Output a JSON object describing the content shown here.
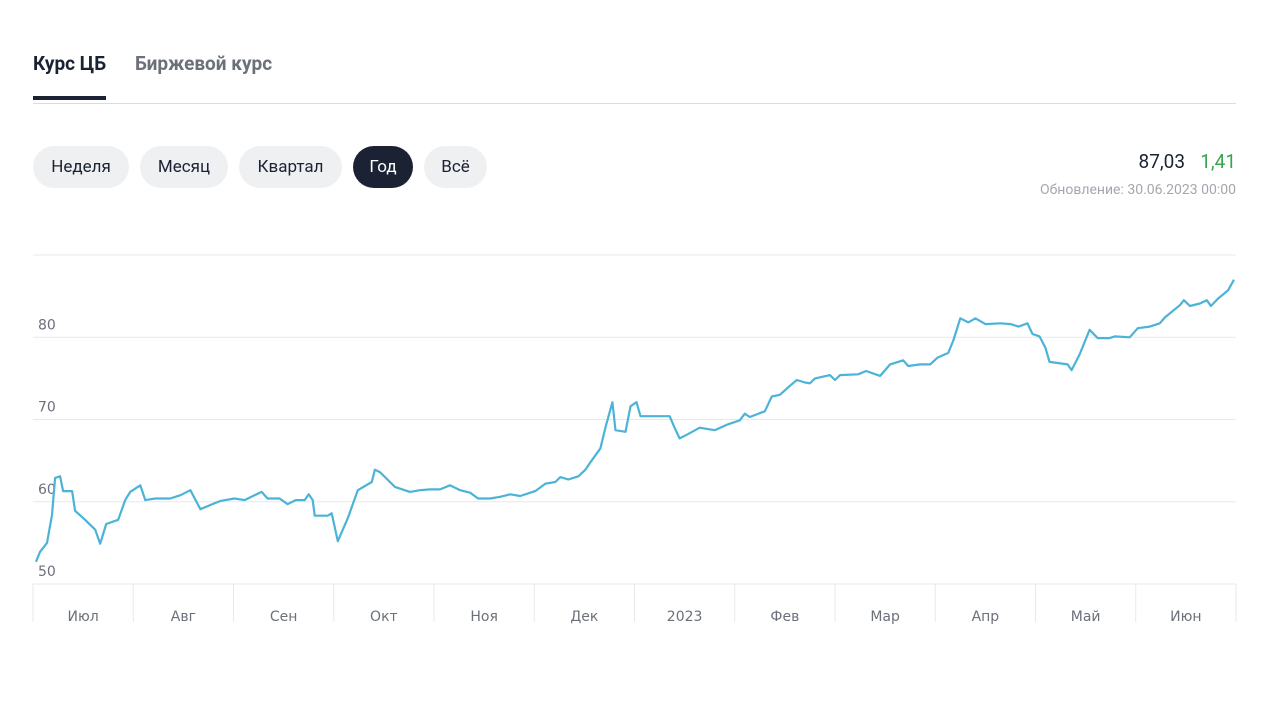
{
  "tabs": [
    "Курс ЦБ",
    "Биржевой курс"
  ],
  "periods": [
    "Неделя",
    "Месяц",
    "Квартал",
    "Год",
    "Всё"
  ],
  "quote": {
    "price": "87,03",
    "change": "1,41",
    "updated": "Обновление: 30.06.2023 00:00"
  },
  "chart_data": {
    "type": "line",
    "color": "#4cb3d8",
    "grid": true,
    "categories": [
      "Июл",
      "Авг",
      "Сен",
      "Окт",
      "Ноя",
      "Дек",
      "2023",
      "Фев",
      "Мар",
      "Апр",
      "Май",
      "Июн"
    ],
    "xlim": [
      0,
      12
    ],
    "ylim": [
      50,
      90
    ],
    "yticks": [
      50,
      60,
      70,
      80
    ],
    "x": [
      0.03,
      0.07,
      0.14,
      0.19,
      0.22,
      0.27,
      0.3,
      0.39,
      0.42,
      0.52,
      0.62,
      0.67,
      0.73,
      0.85,
      0.92,
      0.97,
      1.07,
      1.12,
      1.22,
      1.37,
      1.47,
      1.57,
      1.67,
      1.77,
      1.87,
      2.01,
      2.11,
      2.21,
      2.28,
      2.34,
      2.46,
      2.54,
      2.62,
      2.71,
      2.75,
      2.79,
      2.81,
      2.94,
      2.98,
      3.04,
      3.14,
      3.24,
      3.38,
      3.41,
      3.46,
      3.61,
      3.76,
      3.86,
      3.96,
      4.06,
      4.16,
      4.26,
      4.36,
      4.44,
      4.56,
      4.66,
      4.76,
      4.86,
      5.01,
      5.11,
      5.21,
      5.26,
      5.34,
      5.44,
      5.51,
      5.56,
      5.66,
      5.71,
      5.78,
      5.81,
      5.91,
      5.96,
      6.02,
      6.06,
      6.25,
      6.35,
      6.4,
      6.45,
      6.53,
      6.65,
      6.8,
      6.93,
      7.05,
      7.1,
      7.15,
      7.3,
      7.37,
      7.45,
      7.55,
      7.62,
      7.7,
      7.75,
      7.8,
      7.95,
      8.0,
      8.05,
      8.23,
      8.31,
      8.45,
      8.55,
      8.68,
      8.73,
      8.85,
      8.95,
      9.02,
      9.13,
      9.18,
      9.25,
      9.33,
      9.4,
      9.5,
      9.65,
      9.75,
      9.83,
      9.92,
      9.97,
      10.04,
      10.1,
      10.14,
      10.32,
      10.36,
      10.44,
      10.54,
      10.62,
      10.74,
      10.79,
      10.94,
      11.02,
      11.14,
      11.24,
      11.29,
      11.44,
      11.48,
      11.54,
      11.64,
      11.71,
      11.75,
      11.82,
      11.92,
      11.98
    ],
    "values": [
      52.7,
      53.9,
      55,
      58.4,
      62.9,
      63.1,
      61.3,
      61.3,
      58.9,
      57.8,
      56.6,
      54.9,
      57.3,
      57.8,
      60.2,
      61.2,
      62,
      60.2,
      60.4,
      60.4,
      60.8,
      61.4,
      59.1,
      59.6,
      60.1,
      60.4,
      60.2,
      60.8,
      61.2,
      60.4,
      60.4,
      59.7,
      60.2,
      60.2,
      60.9,
      60.2,
      58.3,
      58.3,
      58.6,
      55.2,
      58,
      61.4,
      62.4,
      63.9,
      63.6,
      61.8,
      61.2,
      61.4,
      61.5,
      61.5,
      62,
      61.4,
      61.1,
      60.4,
      60.4,
      60.6,
      60.9,
      60.7,
      61.3,
      62.2,
      62.4,
      63,
      62.7,
      63.1,
      63.9,
      64.8,
      66.5,
      69,
      72.1,
      68.7,
      68.5,
      71.6,
      72.1,
      70.4,
      70.4,
      70.4,
      69,
      67.7,
      68.2,
      69,
      68.7,
      69.4,
      69.9,
      70.7,
      70.3,
      71,
      72.8,
      73,
      74.1,
      74.8,
      74.5,
      74.4,
      75,
      75.4,
      74.8,
      75.4,
      75.5,
      75.9,
      75.3,
      76.7,
      77.2,
      76.5,
      76.7,
      76.7,
      77.5,
      78.1,
      79.6,
      82.3,
      81.8,
      82.3,
      81.6,
      81.7,
      81.6,
      81.3,
      81.7,
      80.4,
      80.1,
      78.7,
      77,
      76.7,
      76,
      77.9,
      80.9,
      79.9,
      79.9,
      80.1,
      80,
      81.1,
      81.3,
      81.7,
      82.4,
      83.9,
      84.5,
      83.8,
      84.1,
      84.5,
      83.8,
      84.7,
      85.7,
      87
    ]
  }
}
